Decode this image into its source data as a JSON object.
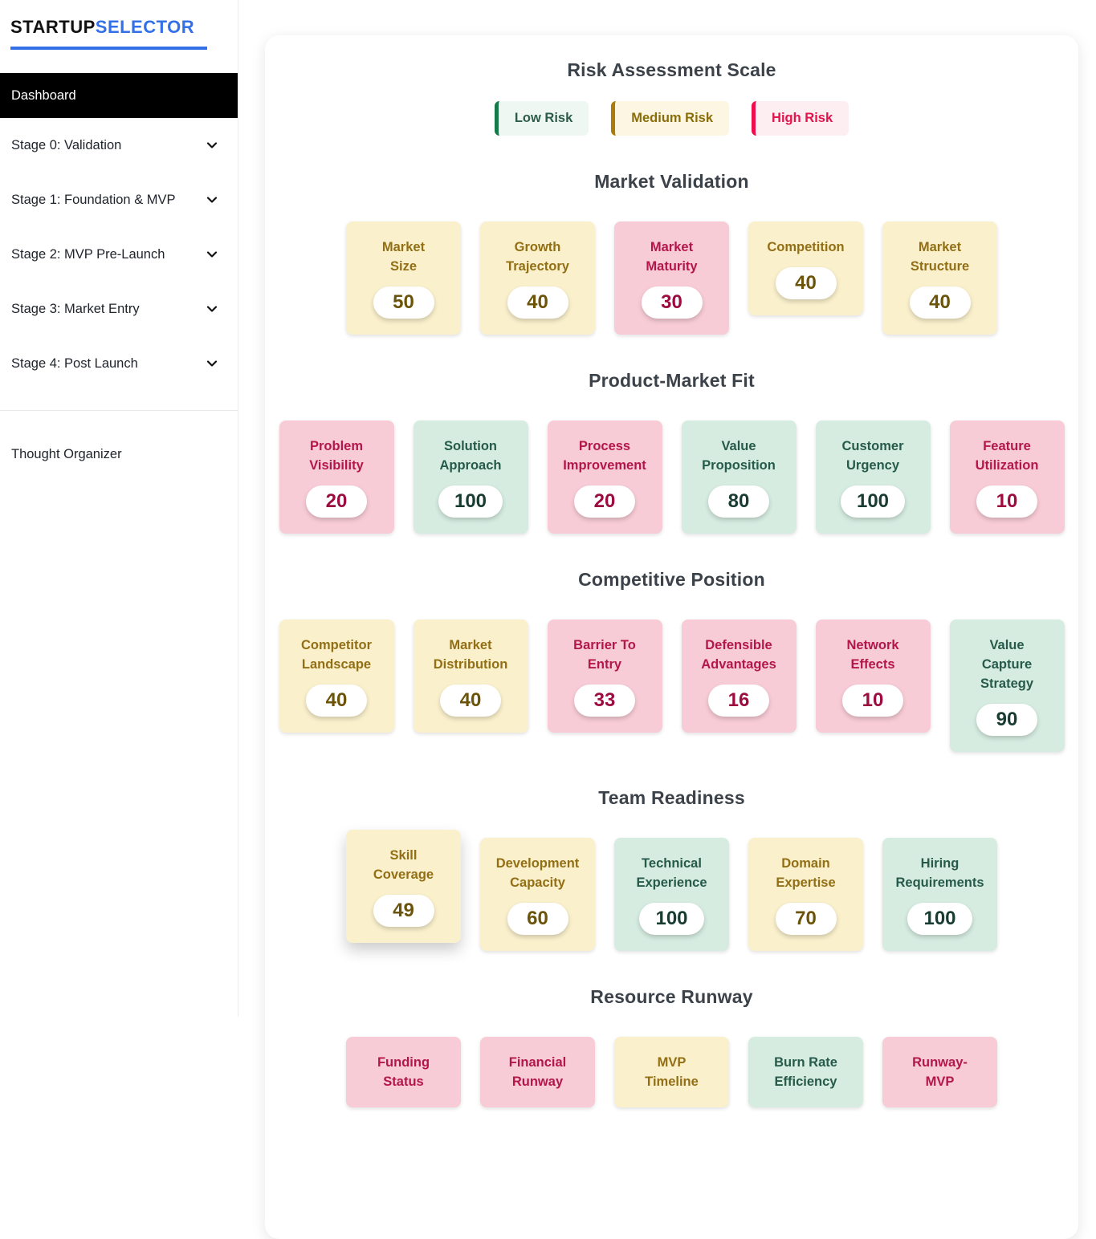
{
  "sidebar": {
    "logo_part1": "STARTUP",
    "logo_part2": "SELECTOR",
    "dashboard_label": "Dashboard",
    "nav_items": [
      "Stage 0: Validation",
      "Stage 1: Foundation & MVP",
      "Stage 2: MVP Pre-Launch",
      "Stage 3: Market Entry",
      "Stage 4: Post Launch"
    ],
    "footer_item": "Thought Organizer"
  },
  "legend": {
    "title": "Risk Assessment Scale",
    "items": [
      {
        "label": "Low Risk",
        "level": "low"
      },
      {
        "label": "Medium Risk",
        "level": "medium"
      },
      {
        "label": "High Risk",
        "level": "high"
      }
    ]
  },
  "sections": [
    {
      "title": "Market Validation",
      "cards": [
        {
          "label_lines": [
            "Market",
            "Size"
          ],
          "value": "50",
          "risk": "medium"
        },
        {
          "label_lines": [
            "Growth",
            "Trajectory"
          ],
          "value": "40",
          "risk": "medium"
        },
        {
          "label_lines": [
            "Market",
            "Maturity"
          ],
          "value": "30",
          "risk": "high"
        },
        {
          "label_lines": [
            "Competition"
          ],
          "value": "40",
          "risk": "medium"
        },
        {
          "label_lines": [
            "Market",
            "Structure"
          ],
          "value": "40",
          "risk": "medium"
        }
      ]
    },
    {
      "title": "Product-Market Fit",
      "cards": [
        {
          "label_lines": [
            "Problem",
            "Visibility"
          ],
          "value": "20",
          "risk": "high"
        },
        {
          "label_lines": [
            "Solution",
            "Approach"
          ],
          "value": "100",
          "risk": "low"
        },
        {
          "label_lines": [
            "Process",
            "Improvement"
          ],
          "value": "20",
          "risk": "high"
        },
        {
          "label_lines": [
            "Value",
            "Proposition"
          ],
          "value": "80",
          "risk": "low"
        },
        {
          "label_lines": [
            "Customer",
            "Urgency"
          ],
          "value": "100",
          "risk": "low"
        },
        {
          "label_lines": [
            "Feature",
            "Utilization"
          ],
          "value": "10",
          "risk": "high"
        }
      ]
    },
    {
      "title": "Competitive Position",
      "cards": [
        {
          "label_lines": [
            "Competitor",
            "Landscape"
          ],
          "value": "40",
          "risk": "medium"
        },
        {
          "label_lines": [
            "Market",
            "Distribution"
          ],
          "value": "40",
          "risk": "medium"
        },
        {
          "label_lines": [
            "Barrier To",
            "Entry"
          ],
          "value": "33",
          "risk": "high"
        },
        {
          "label_lines": [
            "Defensible",
            "Advantages"
          ],
          "value": "16",
          "risk": "high"
        },
        {
          "label_lines": [
            "Network",
            "Effects"
          ],
          "value": "10",
          "risk": "high"
        },
        {
          "label_lines": [
            "Value",
            "Capture",
            "Strategy"
          ],
          "value": "90",
          "risk": "low"
        }
      ]
    },
    {
      "title": "Team Readiness",
      "cards": [
        {
          "label_lines": [
            "Skill",
            "Coverage"
          ],
          "value": "49",
          "risk": "medium",
          "elevated": true
        },
        {
          "label_lines": [
            "Development",
            "Capacity"
          ],
          "value": "60",
          "risk": "medium"
        },
        {
          "label_lines": [
            "Technical",
            "Experience"
          ],
          "value": "100",
          "risk": "low"
        },
        {
          "label_lines": [
            "Domain",
            "Expertise"
          ],
          "value": "70",
          "risk": "medium"
        },
        {
          "label_lines": [
            "Hiring",
            "Requirements"
          ],
          "value": "100",
          "risk": "low"
        }
      ]
    },
    {
      "title": "Resource Runway",
      "cards": [
        {
          "label_lines": [
            "Funding",
            "Status"
          ],
          "value": null,
          "risk": "high"
        },
        {
          "label_lines": [
            "Financial",
            "Runway"
          ],
          "value": null,
          "risk": "high"
        },
        {
          "label_lines": [
            "MVP",
            "Timeline"
          ],
          "value": null,
          "risk": "medium"
        },
        {
          "label_lines": [
            "Burn Rate",
            "Efficiency"
          ],
          "value": null,
          "risk": "low"
        },
        {
          "label_lines": [
            "Runway-",
            "MVP"
          ],
          "value": null,
          "risk": "high"
        }
      ]
    }
  ],
  "colors": {
    "accent_blue": "#3370e8",
    "heading": "#3c4249",
    "risk_low_bg": "#d6ece1",
    "risk_low_label": "#265a4b",
    "risk_low_value": "#183c31",
    "risk_medium_bg": "#faf0cc",
    "risk_medium_label": "#926f15",
    "risk_medium_value": "#6b5409",
    "risk_high_bg": "#f8ccd6",
    "risk_high_label": "#b3174a",
    "risk_high_value": "#9c0c3f",
    "legend_low_bg": "#eff7f3",
    "legend_low_border": "#15794a",
    "legend_low_text": "#2c5d49",
    "legend_medium_bg": "#fdf6e2",
    "legend_medium_border": "#aa7d0a",
    "legend_medium_text": "#8a6d0b",
    "legend_high_bg": "#fdeef2",
    "legend_high_border": "#ee0e4e",
    "legend_high_text": "#e3134c"
  }
}
